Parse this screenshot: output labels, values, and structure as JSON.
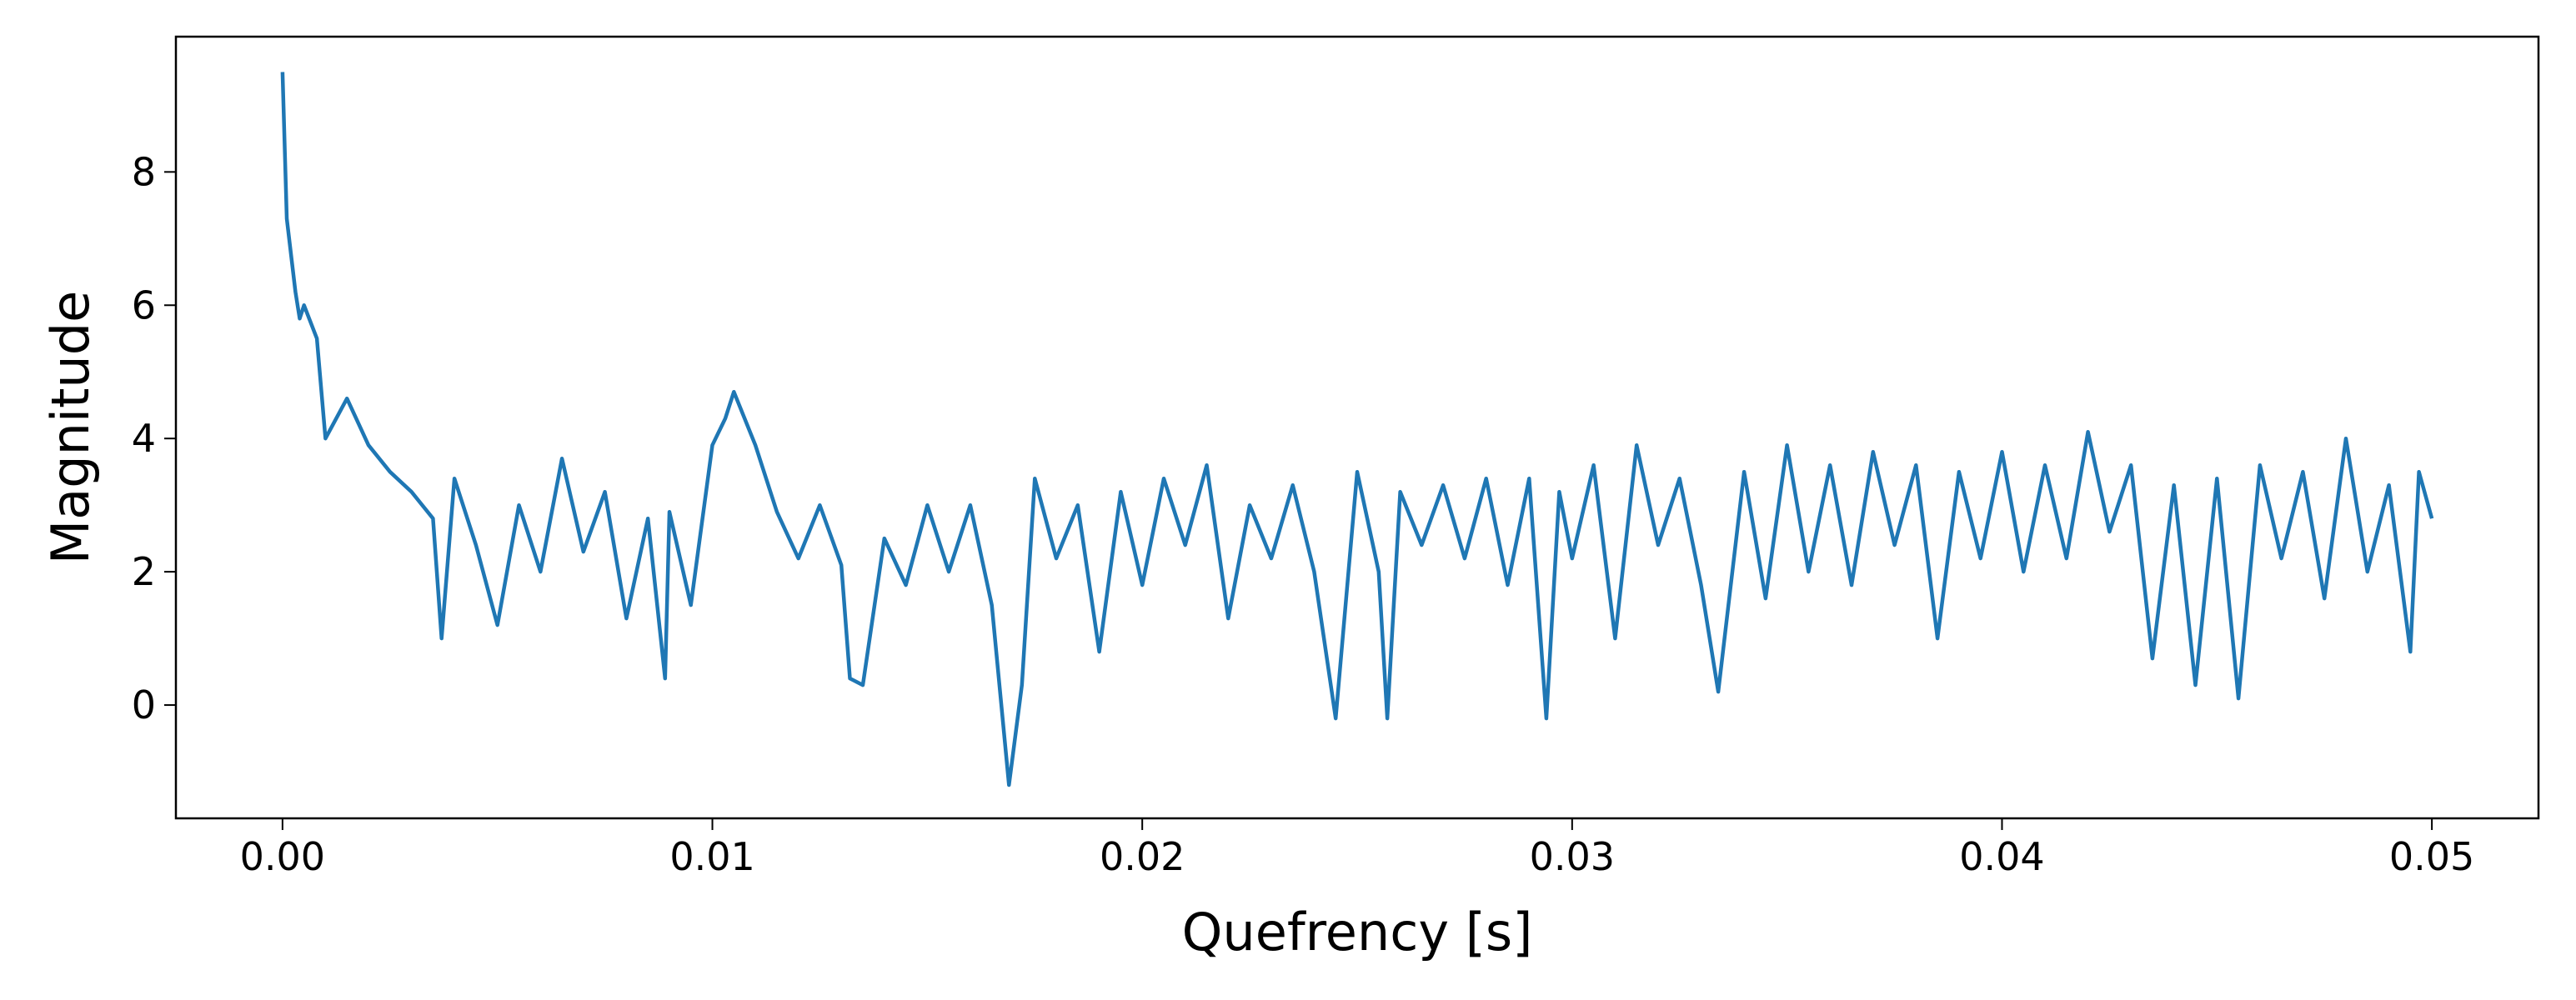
{
  "chart_data": {
    "type": "line",
    "xlabel": "Quefrency [s]",
    "ylabel": "Magnitude",
    "x": [
      0,
      0.0001,
      0.0003,
      0.0004,
      0.0005,
      0.0008,
      0.001,
      0.0015,
      0.002,
      0.0025,
      0.003,
      0.0035,
      0.0037,
      0.004,
      0.0045,
      0.005,
      0.0055,
      0.006,
      0.0065,
      0.007,
      0.0075,
      0.008,
      0.0085,
      0.0089,
      0.009,
      0.0095,
      0.01,
      0.0103,
      0.0105,
      0.011,
      0.0115,
      0.012,
      0.0125,
      0.013,
      0.0132,
      0.0135,
      0.014,
      0.0145,
      0.015,
      0.0155,
      0.016,
      0.0165,
      0.0169,
      0.0172,
      0.0175,
      0.018,
      0.0185,
      0.019,
      0.0195,
      0.02,
      0.0205,
      0.021,
      0.0215,
      0.022,
      0.0225,
      0.023,
      0.0235,
      0.024,
      0.0245,
      0.025,
      0.0255,
      0.0257,
      0.026,
      0.0265,
      0.027,
      0.0275,
      0.028,
      0.0285,
      0.029,
      0.0294,
      0.0297,
      0.03,
      0.0305,
      0.031,
      0.0315,
      0.032,
      0.0325,
      0.033,
      0.0334,
      0.034,
      0.0345,
      0.035,
      0.0355,
      0.036,
      0.0365,
      0.037,
      0.0375,
      0.038,
      0.0385,
      0.039,
      0.0395,
      0.04,
      0.0405,
      0.041,
      0.0415,
      0.042,
      0.0425,
      0.043,
      0.0435,
      0.044,
      0.0445,
      0.045,
      0.0455,
      0.046,
      0.0465,
      0.047,
      0.0475,
      0.048,
      0.0485,
      0.049,
      0.0495,
      0.0497,
      0.05
    ],
    "values": [
      9.5,
      7.3,
      6.2,
      5.8,
      6.0,
      5.5,
      4.0,
      4.6,
      3.9,
      3.5,
      3.2,
      2.8,
      1.0,
      3.4,
      2.4,
      1.2,
      3.0,
      2.0,
      3.7,
      2.3,
      3.2,
      1.3,
      2.8,
      0.4,
      2.9,
      1.5,
      3.9,
      4.3,
      4.7,
      3.9,
      2.9,
      2.2,
      3.0,
      2.1,
      0.4,
      0.3,
      2.5,
      1.8,
      3.0,
      2.0,
      3.0,
      1.5,
      -1.2,
      0.3,
      3.4,
      2.2,
      3.0,
      0.8,
      3.2,
      1.8,
      3.4,
      2.4,
      3.6,
      1.3,
      3.0,
      2.2,
      3.3,
      2.0,
      -0.2,
      3.5,
      2.0,
      -0.2,
      3.2,
      2.4,
      3.3,
      2.2,
      3.4,
      1.8,
      3.4,
      -0.2,
      3.2,
      2.2,
      3.6,
      1.0,
      3.9,
      2.4,
      3.4,
      1.8,
      0.2,
      3.5,
      1.6,
      3.9,
      2.0,
      3.6,
      1.8,
      3.8,
      2.4,
      3.6,
      1.0,
      3.5,
      2.2,
      3.8,
      2.0,
      3.6,
      2.2,
      4.1,
      2.6,
      3.6,
      0.7,
      3.3,
      0.3,
      3.4,
      0.1,
      3.6,
      2.2,
      3.5,
      1.6,
      4.0,
      2.0,
      3.3,
      0.8,
      3.5,
      2.8
    ],
    "color": "#1f77b4",
    "xlim": [
      -0.00248,
      0.05248
    ],
    "ylim": [
      -1.7,
      10.03
    ],
    "xticks": [
      {
        "value": 0,
        "label": "0.00"
      },
      0.01,
      0.02,
      0.03,
      0.04,
      0.05
    ],
    "yticks": [
      0,
      2,
      4,
      6,
      8
    ]
  }
}
